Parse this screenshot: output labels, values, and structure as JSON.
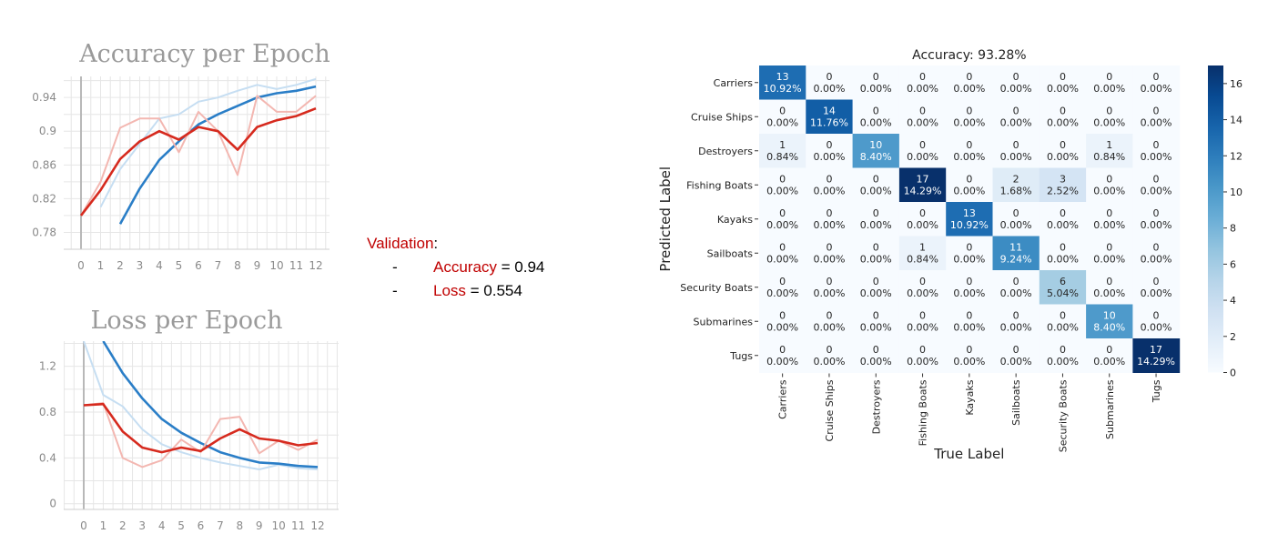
{
  "colors": {
    "train_blue": "#2a7ec7",
    "train_blue_light": "#c6def2",
    "val_red": "#d62a1e",
    "val_red_light": "#f3b7b1",
    "grid": "#e6e6e6",
    "axis_text": "#8a8a8a",
    "highlight": "#c00000"
  },
  "validation": {
    "label": "Validation",
    "colon": ":",
    "items": [
      {
        "bullet": "-",
        "name": "Accuracy",
        "value": " = 0.94"
      },
      {
        "bullet": "-",
        "name": "Loss",
        "value": " = 0.554"
      }
    ]
  },
  "chart_data": [
    {
      "type": "line",
      "title": "Accuracy per Epoch",
      "xlabel": "",
      "ylabel": "",
      "x": [
        0,
        1,
        2,
        3,
        4,
        5,
        6,
        7,
        8,
        9,
        10,
        11,
        12
      ],
      "ylim": [
        0.76,
        0.965
      ],
      "yticks": [
        0.78,
        0.82,
        0.86,
        0.9,
        0.94
      ],
      "ytick_labels": [
        "0.78",
        "0.82",
        "0.86",
        "0.9",
        "0.94"
      ],
      "grid": true,
      "series": [
        {
          "role": "training_raw",
          "color": "#c6def2",
          "values": [
            null,
            0.81,
            0.855,
            0.885,
            0.915,
            0.92,
            0.935,
            0.94,
            0.948,
            0.955,
            0.95,
            0.955,
            0.962
          ]
        },
        {
          "role": "training",
          "color": "#2a7ec7",
          "values": [
            null,
            null,
            0.79,
            0.832,
            0.866,
            0.888,
            0.908,
            0.92,
            0.93,
            0.94,
            0.945,
            0.948,
            0.953
          ]
        },
        {
          "role": "validation_raw",
          "color": "#f3b7b1",
          "values": [
            0.8,
            0.84,
            0.904,
            0.915,
            0.915,
            0.875,
            0.923,
            0.9,
            0.848,
            0.942,
            0.923,
            0.923,
            0.942
          ]
        },
        {
          "role": "validation",
          "color": "#d62a1e",
          "values": [
            0.8,
            0.83,
            0.867,
            0.888,
            0.9,
            0.89,
            0.905,
            0.9,
            0.878,
            0.905,
            0.913,
            0.918,
            0.927
          ]
        }
      ]
    },
    {
      "type": "line",
      "title": "Loss per Epoch",
      "xlabel": "",
      "ylabel": "",
      "x": [
        0,
        1,
        2,
        3,
        4,
        5,
        6,
        7,
        8,
        9,
        10,
        11,
        12
      ],
      "ylim": [
        -0.05,
        1.42
      ],
      "yticks": [
        0,
        0.4,
        0.8,
        1.2
      ],
      "ytick_labels": [
        "0",
        "0.4",
        "0.8",
        "1.2"
      ],
      "grid": true,
      "series": [
        {
          "role": "training_raw",
          "color": "#c6def2",
          "values": [
            1.42,
            0.95,
            0.85,
            0.65,
            0.52,
            0.45,
            0.4,
            0.36,
            0.33,
            0.3,
            0.34,
            0.31,
            0.3
          ]
        },
        {
          "role": "training",
          "color": "#2a7ec7",
          "values": [
            null,
            1.42,
            1.14,
            0.92,
            0.74,
            0.62,
            0.53,
            0.45,
            0.4,
            0.36,
            0.35,
            0.33,
            0.32
          ]
        },
        {
          "role": "validation_raw",
          "color": "#f3b7b1",
          "values": [
            0.86,
            0.88,
            0.4,
            0.32,
            0.38,
            0.56,
            0.45,
            0.74,
            0.76,
            0.44,
            0.55,
            0.47,
            0.56
          ]
        },
        {
          "role": "validation",
          "color": "#d62a1e",
          "values": [
            0.86,
            0.87,
            0.63,
            0.49,
            0.45,
            0.49,
            0.46,
            0.57,
            0.65,
            0.57,
            0.55,
            0.51,
            0.53
          ]
        }
      ]
    },
    {
      "type": "heatmap",
      "title": "Accuracy: 93.28%",
      "xlabel": "True Label",
      "ylabel": "Predicted Label",
      "x_categories": [
        "Carriers",
        "Cruise Ships",
        "Destroyers",
        "Fishing Boats",
        "Kayaks",
        "Sailboats",
        "Security Boats",
        "Submarines",
        "Tugs"
      ],
      "y_categories": [
        "Carriers",
        "Cruise Ships",
        "Destroyers",
        "Fishing Boats",
        "Kayaks",
        "Sailboats",
        "Security Boats",
        "Submarines",
        "Tugs"
      ],
      "values": [
        [
          13,
          0,
          0,
          0,
          0,
          0,
          0,
          0,
          0
        ],
        [
          0,
          14,
          0,
          0,
          0,
          0,
          0,
          0,
          0
        ],
        [
          1,
          0,
          10,
          0,
          0,
          0,
          0,
          1,
          0
        ],
        [
          0,
          0,
          0,
          17,
          0,
          2,
          3,
          0,
          0
        ],
        [
          0,
          0,
          0,
          0,
          13,
          0,
          0,
          0,
          0
        ],
        [
          0,
          0,
          0,
          1,
          0,
          11,
          0,
          0,
          0
        ],
        [
          0,
          0,
          0,
          0,
          0,
          0,
          6,
          0,
          0
        ],
        [
          0,
          0,
          0,
          0,
          0,
          0,
          0,
          10,
          0
        ],
        [
          0,
          0,
          0,
          0,
          0,
          0,
          0,
          0,
          17
        ]
      ],
      "percents": [
        [
          "10.92%",
          "0.00%",
          "0.00%",
          "0.00%",
          "0.00%",
          "0.00%",
          "0.00%",
          "0.00%",
          "0.00%"
        ],
        [
          "0.00%",
          "11.76%",
          "0.00%",
          "0.00%",
          "0.00%",
          "0.00%",
          "0.00%",
          "0.00%",
          "0.00%"
        ],
        [
          "0.84%",
          "0.00%",
          "8.40%",
          "0.00%",
          "0.00%",
          "0.00%",
          "0.00%",
          "0.84%",
          "0.00%"
        ],
        [
          "0.00%",
          "0.00%",
          "0.00%",
          "14.29%",
          "0.00%",
          "1.68%",
          "2.52%",
          "0.00%",
          "0.00%"
        ],
        [
          "0.00%",
          "0.00%",
          "0.00%",
          "0.00%",
          "10.92%",
          "0.00%",
          "0.00%",
          "0.00%",
          "0.00%"
        ],
        [
          "0.00%",
          "0.00%",
          "0.00%",
          "0.84%",
          "0.00%",
          "9.24%",
          "0.00%",
          "0.00%",
          "0.00%"
        ],
        [
          "0.00%",
          "0.00%",
          "0.00%",
          "0.00%",
          "0.00%",
          "0.00%",
          "5.04%",
          "0.00%",
          "0.00%"
        ],
        [
          "0.00%",
          "0.00%",
          "0.00%",
          "0.00%",
          "0.00%",
          "0.00%",
          "0.00%",
          "8.40%",
          "0.00%"
        ],
        [
          "0.00%",
          "0.00%",
          "0.00%",
          "0.00%",
          "0.00%",
          "0.00%",
          "0.00%",
          "0.00%",
          "14.29%"
        ]
      ],
      "colorbar": {
        "range": [
          0,
          17
        ],
        "ticks": [
          0,
          2,
          4,
          6,
          8,
          10,
          12,
          14,
          16
        ],
        "colormap": "Blues"
      }
    }
  ]
}
